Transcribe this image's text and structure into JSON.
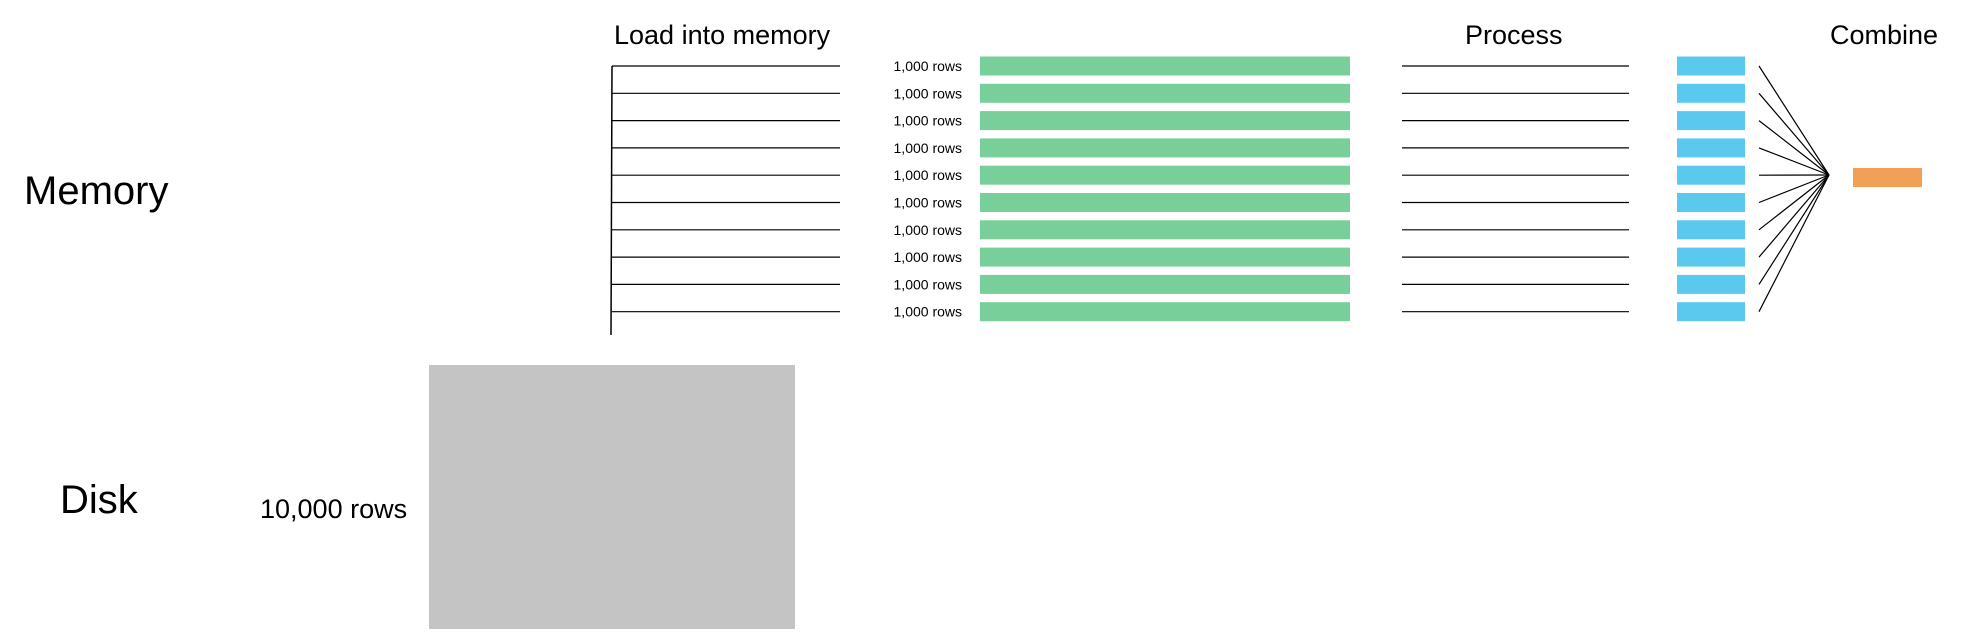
{
  "labels": {
    "memory": "Memory",
    "disk": "Disk",
    "load": "Load into memory",
    "process": "Process",
    "combine": "Combine",
    "disk_rows": "10,000 rows"
  },
  "chunks": [
    {
      "label": "1,000 rows"
    },
    {
      "label": "1,000 rows"
    },
    {
      "label": "1,000 rows"
    },
    {
      "label": "1,000 rows"
    },
    {
      "label": "1,000 rows"
    },
    {
      "label": "1,000 rows"
    },
    {
      "label": "1,000 rows"
    },
    {
      "label": "1,000 rows"
    },
    {
      "label": "1,000 rows"
    },
    {
      "label": "1,000 rows"
    }
  ],
  "colors": {
    "disk_block": "#c4c4c4",
    "chunk": "#78cf9a",
    "processed": "#5bc8ee",
    "combined": "#f29f58",
    "line": "#000000"
  }
}
